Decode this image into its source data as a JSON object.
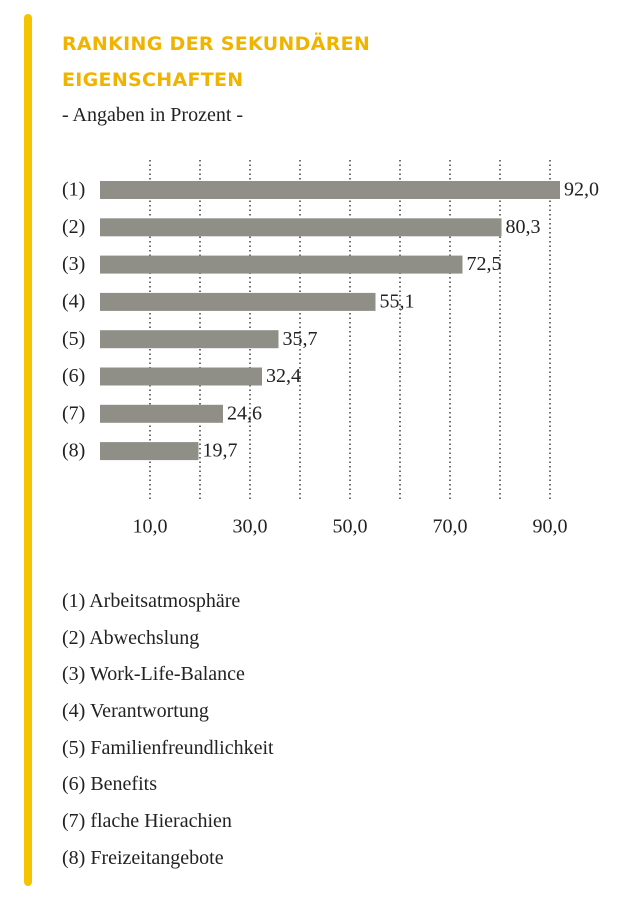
{
  "chart_data": {
    "type": "bar",
    "orientation": "horizontal",
    "title": "RANKING DER SEKUNDÄREN EIGENSCHAFTEN",
    "subtitle": "- Angaben in Prozent -",
    "categories": [
      "(1)",
      "(2)",
      "(3)",
      "(4)",
      "(5)",
      "(6)",
      "(7)",
      "(8)"
    ],
    "values": [
      92.0,
      80.3,
      72.5,
      55.1,
      35.7,
      32.4,
      24.6,
      19.7
    ],
    "value_labels": [
      "92,0",
      "80,3",
      "72,5",
      "55,1",
      "35,7",
      "32,4",
      "24,6",
      "19,7"
    ],
    "color": "#8f8f88",
    "xlim": [
      0,
      100
    ],
    "xticks": [
      {
        "value": 10,
        "label": "10,0"
      },
      {
        "value": 30,
        "label": "30,0"
      },
      {
        "value": 50,
        "label": "50,0"
      },
      {
        "value": 70,
        "label": "70,0"
      },
      {
        "value": 90,
        "label": "90,0"
      }
    ],
    "minor_xticks": [
      20,
      40,
      60,
      80
    ],
    "grid": true,
    "legend": [
      "(1) Arbeitsatmosphäre",
      "(2) Abwechslung",
      "(3) Work-Life-Balance",
      "(4) Verantwortung",
      "(5) Familienfreundlichkeit",
      "(6) Benefits",
      "(7) flache Hierachien",
      "(8) Freizeitangebote"
    ]
  }
}
